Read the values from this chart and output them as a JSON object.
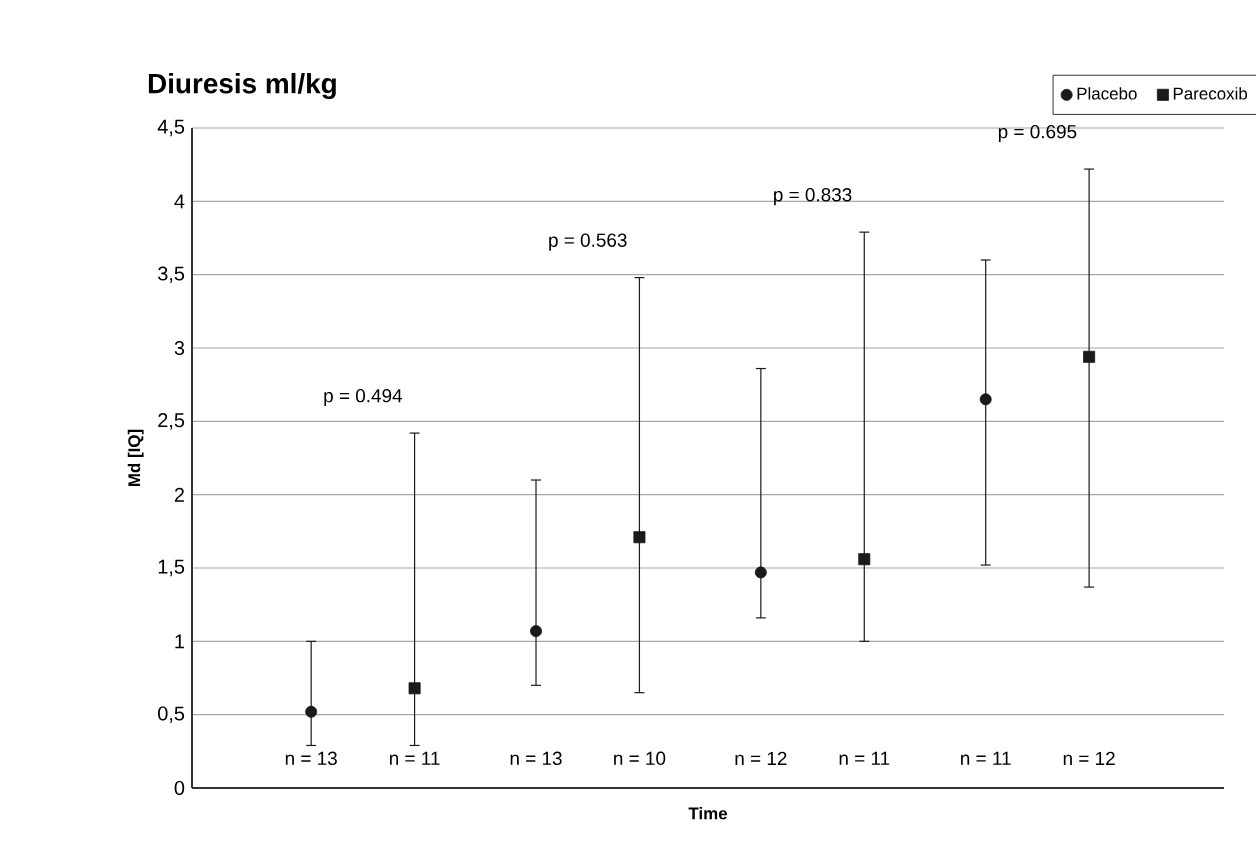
{
  "chart_data": {
    "type": "scatter",
    "title": "Diuresis ml/kg",
    "xlabel": "Time",
    "ylabel": "Md [IQ]",
    "categories": [
      null,
      null,
      null,
      null
    ],
    "series": [
      {
        "name": "Placebo",
        "color": "#1a1a1a",
        "marker": "circle",
        "values": [
          0.52,
          1.07,
          1.47,
          2.65
        ],
        "errors": [
          [
            0.29,
            1.0
          ],
          [
            0.7,
            2.1
          ],
          [
            1.16,
            2.86
          ],
          [
            1.52,
            3.6
          ]
        ]
      },
      {
        "name": "Parecoxib",
        "color": "#1a1a1a",
        "marker": "square",
        "values": [
          0.68,
          1.71,
          1.56,
          2.94
        ],
        "errors": [
          [
            0.29,
            2.42
          ],
          [
            0.65,
            3.48
          ],
          [
            1.0,
            3.79
          ],
          [
            1.37,
            4.22
          ]
        ]
      }
    ],
    "ylim": [
      0,
      4.5
    ],
    "yticks": [
      0,
      {
        "value": 0.5,
        "label": "0,5"
      },
      1,
      {
        "value": 1.5,
        "label": "1,5"
      },
      2,
      {
        "value": 2.5,
        "label": "2,5"
      },
      3,
      {
        "value": 3.5,
        "label": "3,5"
      },
      4,
      {
        "value": 4.5,
        "label": "4,5"
      }
    ],
    "grid": "y",
    "legend": "top right",
    "annotations": [
      "p = 0.494",
      "p = 0.563",
      "p = 0.833",
      "p = 0.695",
      "n = 13",
      "n = 11",
      "n = 13",
      "n = 10",
      "n = 12",
      "n = 11",
      "n = 11",
      "n = 12"
    ]
  }
}
